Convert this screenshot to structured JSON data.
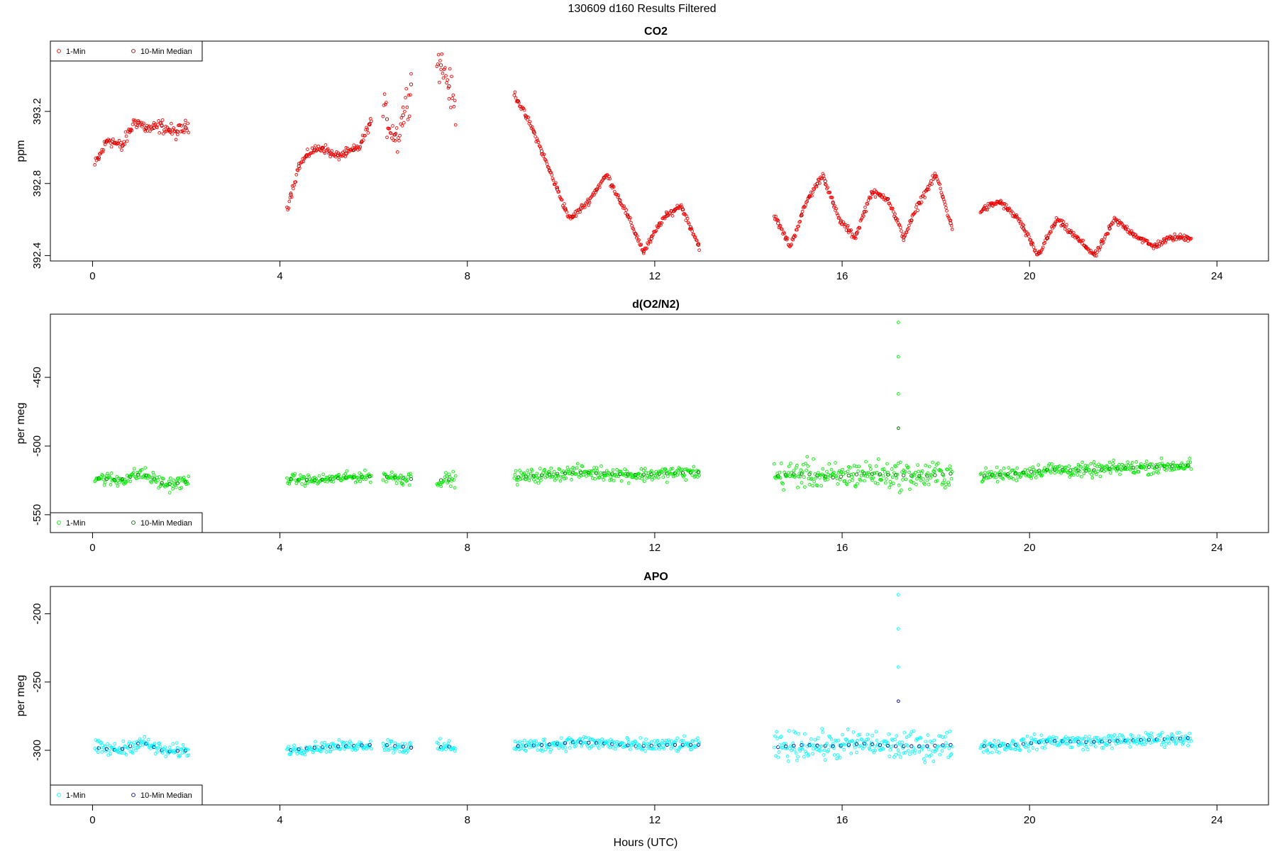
{
  "figure_title": "130609   d160   Results Filtered",
  "x_axis_label": "Hours (UTC)",
  "chart_data": [
    {
      "type": "scatter",
      "title": "CO2",
      "ylabel": "ppm",
      "xlim": [
        -0.9,
        25.1
      ],
      "ylim": [
        392.37,
        393.59
      ],
      "xticks": [
        0,
        4,
        8,
        12,
        16,
        20,
        24
      ],
      "yticks": [
        392.4,
        392.8,
        393.2
      ],
      "ytick_labels": [
        "392.4",
        "392.8",
        "393.2"
      ],
      "legend": {
        "position": "top-left",
        "entries": [
          {
            "label": "1-Min",
            "color": "#ff0000"
          },
          {
            "label": "10-Min Median",
            "color": "#8b0000"
          }
        ]
      },
      "series_colors": {
        "one_min": "#ff0000",
        "median": "#8b0000"
      },
      "base_level": 392.55,
      "spike": null,
      "segments": [
        {
          "x_start": 0.05,
          "x_end": 2.05,
          "y": [
            392.9,
            393.05,
            393.0,
            393.15,
            393.1,
            393.12,
            393.08,
            393.12
          ],
          "noise": 0.03
        },
        {
          "x_start": 4.15,
          "x_end": 5.95,
          "y": [
            392.66,
            392.9,
            392.98,
            393.0,
            392.95,
            392.97,
            393.0,
            393.15
          ],
          "noise": 0.02
        },
        {
          "x_start": 6.2,
          "x_end": 6.8,
          "y": [
            393.2,
            393.05,
            393.35
          ],
          "noise": 0.08
        },
        {
          "x_start": 7.35,
          "x_end": 7.75,
          "y": [
            393.5,
            393.4,
            393.2
          ],
          "noise": 0.08
        },
        {
          "x_start": 9.0,
          "x_end": 12.95,
          "y": [
            393.3,
            393.1,
            392.85,
            392.6,
            392.7,
            392.85,
            392.65,
            392.42,
            392.6,
            392.68,
            392.45
          ],
          "noise": 0.015
        },
        {
          "x_start": 14.55,
          "x_end": 18.35,
          "y": [
            392.62,
            392.45,
            392.7,
            392.85,
            392.6,
            392.5,
            392.75,
            392.72,
            392.5,
            392.7,
            392.85,
            392.55
          ],
          "noise": 0.015
        },
        {
          "x_start": 18.95,
          "x_end": 23.45,
          "y": [
            392.65,
            392.7,
            392.6,
            392.4,
            392.6,
            392.5,
            392.4,
            392.6,
            392.52,
            392.45,
            392.5,
            392.5
          ],
          "noise": 0.015
        }
      ]
    },
    {
      "type": "scatter",
      "title": "d(O2/N2)",
      "ylabel": "per meg",
      "xlim": [
        -0.9,
        25.1
      ],
      "ylim": [
        -563,
        -404
      ],
      "xticks": [
        0,
        4,
        8,
        12,
        16,
        20,
        24
      ],
      "yticks": [
        -550,
        -500,
        -450
      ],
      "ytick_labels": [
        "-550",
        "-500",
        "-450"
      ],
      "legend": {
        "position": "bottom-left",
        "entries": [
          {
            "label": "1-Min",
            "color": "#00ee00"
          },
          {
            "label": "10-Min Median",
            "color": "#006400"
          }
        ]
      },
      "series_colors": {
        "one_min": "#00ee00",
        "median": "#006400"
      },
      "base_level": -522,
      "spike": {
        "x": 17.2,
        "y": [
          -410,
          -435,
          -462,
          -487
        ]
      },
      "segments": [
        {
          "x_start": 0.05,
          "x_end": 2.05,
          "y": [
            -523,
            -525,
            -520,
            -528,
            -526
          ],
          "noise": 4
        },
        {
          "x_start": 4.15,
          "x_end": 5.95,
          "y": [
            -524,
            -525,
            -523,
            -522
          ],
          "noise": 3
        },
        {
          "x_start": 6.2,
          "x_end": 6.8,
          "y": [
            -522,
            -524
          ],
          "noise": 4
        },
        {
          "x_start": 7.35,
          "x_end": 7.75,
          "y": [
            -525,
            -524
          ],
          "noise": 4
        },
        {
          "x_start": 9.0,
          "x_end": 12.95,
          "y": [
            -523,
            -521,
            -519,
            -520,
            -521,
            -520,
            -519
          ],
          "noise": 4
        },
        {
          "x_start": 14.55,
          "x_end": 18.35,
          "y": [
            -522,
            -520,
            -523,
            -520,
            -521,
            -522,
            -520
          ],
          "noise": 8
        },
        {
          "x_start": 18.95,
          "x_end": 23.45,
          "y": [
            -522,
            -520,
            -517,
            -518,
            -516,
            -515,
            -514
          ],
          "noise": 4
        }
      ]
    },
    {
      "type": "scatter",
      "title": "APO",
      "ylabel": "per meg",
      "xlim": [
        -0.9,
        25.1
      ],
      "ylim": [
        -340,
        -180
      ],
      "xticks": [
        0,
        4,
        8,
        12,
        16,
        20,
        24
      ],
      "yticks": [
        -300,
        -250,
        -200
      ],
      "ytick_labels": [
        "-300",
        "-250",
        "-200"
      ],
      "legend": {
        "position": "bottom-left",
        "entries": [
          {
            "label": "1-Min",
            "color": "#00ffff"
          },
          {
            "label": "10-Min Median",
            "color": "#00008b"
          }
        ]
      },
      "series_colors": {
        "one_min": "#00ffff",
        "median": "#00008b"
      },
      "base_level": -297,
      "spike": {
        "x": 17.2,
        "y": [
          -186,
          -211,
          -239,
          -264
        ]
      },
      "segments": [
        {
          "x_start": 0.05,
          "x_end": 2.05,
          "y": [
            -298,
            -300,
            -294,
            -301,
            -300
          ],
          "noise": 4
        },
        {
          "x_start": 4.15,
          "x_end": 5.95,
          "y": [
            -300,
            -298,
            -297,
            -296
          ],
          "noise": 3
        },
        {
          "x_start": 6.2,
          "x_end": 6.8,
          "y": [
            -296,
            -298
          ],
          "noise": 4
        },
        {
          "x_start": 7.35,
          "x_end": 7.75,
          "y": [
            -298,
            -297
          ],
          "noise": 4
        },
        {
          "x_start": 9.0,
          "x_end": 12.95,
          "y": [
            -297,
            -296,
            -294,
            -295,
            -297,
            -296,
            -296
          ],
          "noise": 4
        },
        {
          "x_start": 14.55,
          "x_end": 18.35,
          "y": [
            -298,
            -296,
            -297,
            -295,
            -297,
            -297,
            -296
          ],
          "noise": 8
        },
        {
          "x_start": 18.95,
          "x_end": 23.45,
          "y": [
            -297,
            -296,
            -293,
            -294,
            -293,
            -292,
            -291
          ],
          "noise": 4
        }
      ]
    }
  ]
}
